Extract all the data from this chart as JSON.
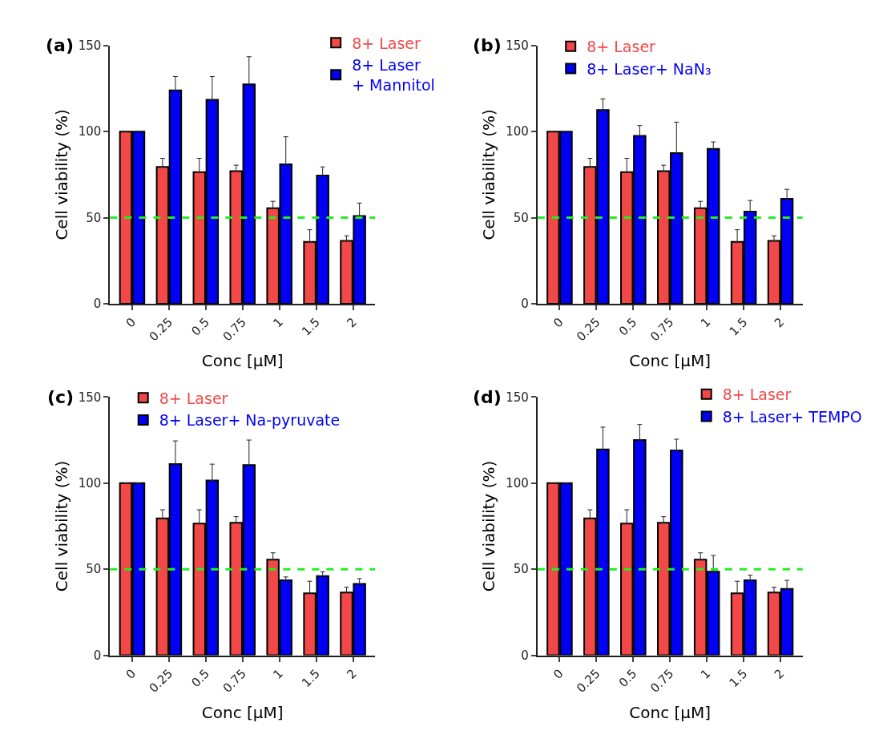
{
  "chart_data": [
    {
      "type": "bar",
      "title": "(a)",
      "xlabel": "Conc [μM]",
      "ylabel": "Cell viability (%)",
      "categories": [
        "0",
        "0.25",
        "0.5",
        "0.75",
        "1",
        "1.5",
        "2"
      ],
      "ylim": [
        0,
        150
      ],
      "yticks": [
        0,
        50,
        100,
        150
      ],
      "legend": "top right",
      "series": [
        {
          "name": "8+ Laser",
          "color": "#f24848",
          "values": [
            100,
            79.5,
            76.5,
            77,
            55.5,
            36,
            36.5
          ],
          "errors": [
            null,
            [
              79.5,
              84.5
            ],
            [
              76.5,
              84.5
            ],
            [
              77,
              80.5
            ],
            [
              55.5,
              59.5
            ],
            [
              36,
              43
            ],
            [
              36.5,
              39.5
            ]
          ]
        },
        {
          "name": "8+ Laser\n+ Mannitol",
          "color": "#0000f5",
          "values": [
            100,
            124,
            118.5,
            127.5,
            81,
            74.5,
            51
          ],
          "errors": [
            null,
            [
              124,
              132
            ],
            [
              118.5,
              132
            ],
            [
              127.5,
              143.5
            ],
            [
              81,
              97
            ],
            [
              74.5,
              79.5
            ],
            [
              51,
              58.5
            ]
          ]
        }
      ],
      "ref_lines": [
        {
          "axis": "y",
          "value": 50,
          "color": "#22ee22",
          "line_style": "dashed"
        }
      ]
    },
    {
      "type": "bar",
      "title": "(b)",
      "xlabel": "Conc [μM]",
      "ylabel": "Cell viability (%)",
      "categories": [
        "0",
        "0.25",
        "0.5",
        "0.75",
        "1",
        "1.5",
        "2"
      ],
      "ylim": [
        0,
        150
      ],
      "yticks": [
        0,
        50,
        100,
        150
      ],
      "legend": "top left",
      "series": [
        {
          "name": "8+ Laser",
          "color": "#f24848",
          "values": [
            100,
            79.5,
            76.5,
            77,
            55.5,
            36,
            36.5
          ],
          "errors": [
            null,
            [
              79.5,
              84.5
            ],
            [
              76.5,
              84.5
            ],
            [
              77,
              80.5
            ],
            [
              55.5,
              59.5
            ],
            [
              36,
              43
            ],
            [
              36.5,
              39.5
            ]
          ]
        },
        {
          "name": "8+ Laser+ NaN₃",
          "color": "#0000f5",
          "values": [
            100,
            112.5,
            97.5,
            87.5,
            90,
            53.5,
            61
          ],
          "errors": [
            null,
            [
              112.5,
              119
            ],
            [
              97.5,
              103.5
            ],
            [
              87.5,
              105.5
            ],
            [
              90,
              94
            ],
            [
              53.5,
              60
            ],
            [
              61,
              66.5
            ]
          ]
        }
      ],
      "ref_lines": [
        {
          "axis": "y",
          "value": 50,
          "color": "#22ee22",
          "line_style": "dashed"
        }
      ]
    },
    {
      "type": "bar",
      "title": "(c)",
      "xlabel": "Conc [μM]",
      "ylabel": "Cell viability (%)",
      "categories": [
        "0",
        "0.25",
        "0.5",
        "0.75",
        "1",
        "1.5",
        "2"
      ],
      "ylim": [
        0,
        150
      ],
      "yticks": [
        0,
        50,
        100,
        150
      ],
      "legend": "top left",
      "series": [
        {
          "name": "8+ Laser",
          "color": "#f24848",
          "values": [
            100,
            79.5,
            76.5,
            77,
            55.5,
            36,
            36.5
          ],
          "errors": [
            null,
            [
              79.5,
              84.5
            ],
            [
              76.5,
              84.5
            ],
            [
              77,
              80.5
            ],
            [
              55.5,
              59.5
            ],
            [
              36,
              43
            ],
            [
              36.5,
              39.5
            ]
          ]
        },
        {
          "name": "8+ Laser+ Na-pyruvate",
          "color": "#0000f5",
          "values": [
            100,
            111,
            101.5,
            110.5,
            43.5,
            46,
            41.5
          ],
          "errors": [
            null,
            [
              111,
              124.5
            ],
            [
              101.5,
              111
            ],
            [
              110.5,
              125
            ],
            [
              43.5,
              45.5
            ],
            [
              46,
              48.5
            ],
            [
              41.5,
              44.5
            ]
          ]
        }
      ],
      "ref_lines": [
        {
          "axis": "y",
          "value": 50,
          "color": "#22ee22",
          "line_style": "dashed"
        }
      ]
    },
    {
      "type": "bar",
      "title": "(d)",
      "xlabel": "Conc [μM]",
      "ylabel": "Cell viability (%)",
      "categories": [
        "0",
        "0.25",
        "0.5",
        "0.75",
        "1",
        "1.5",
        "2"
      ],
      "ylim": [
        0,
        150
      ],
      "yticks": [
        0,
        50,
        100,
        150
      ],
      "legend": "top right",
      "series": [
        {
          "name": "8+ Laser",
          "color": "#f24848",
          "values": [
            100,
            79.5,
            76.5,
            77,
            55.5,
            36,
            36.5
          ],
          "errors": [
            null,
            [
              79.5,
              84.5
            ],
            [
              76.5,
              84.5
            ],
            [
              77,
              80.5
            ],
            [
              55.5,
              59.5
            ],
            [
              36,
              43
            ],
            [
              36.5,
              39.5
            ]
          ]
        },
        {
          "name": "8+ Laser+ TEMPO",
          "color": "#0000f5",
          "values": [
            100,
            119.5,
            125,
            119,
            48.5,
            43.5,
            38.5
          ],
          "errors": [
            null,
            [
              119.5,
              132.5
            ],
            [
              125,
              134
            ],
            [
              119,
              125.5
            ],
            [
              48.5,
              58
            ],
            [
              43.5,
              46.5
            ],
            [
              38.5,
              43.5
            ]
          ]
        }
      ],
      "ref_lines": [
        {
          "axis": "y",
          "value": 50,
          "color": "#22ee22",
          "line_style": "dashed"
        }
      ]
    }
  ]
}
